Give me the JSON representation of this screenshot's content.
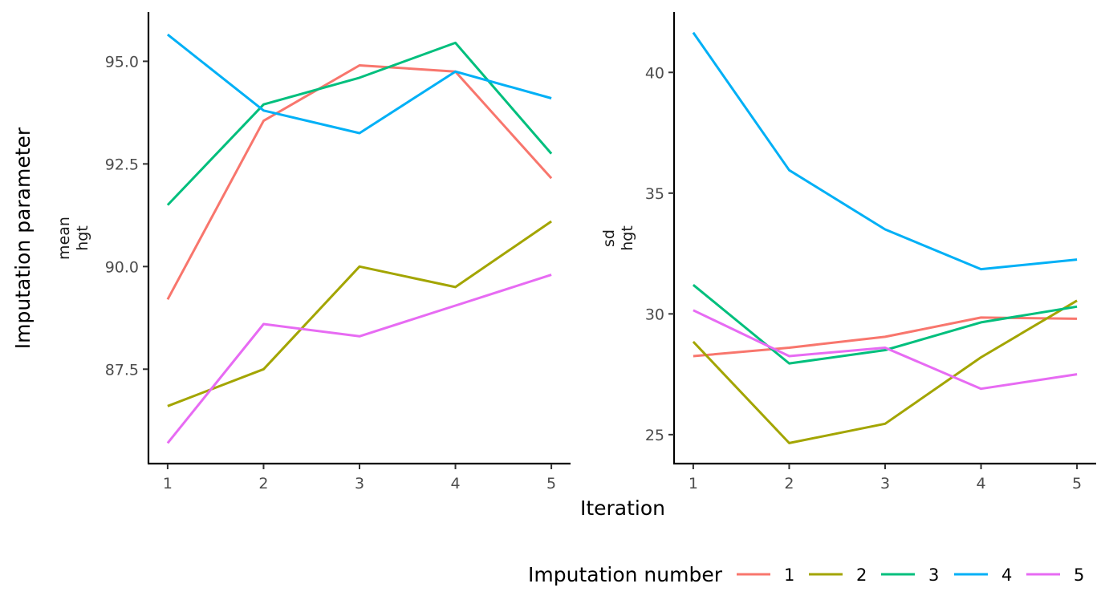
{
  "chart_data": {
    "type": "line",
    "ylabel": "Imputation parameter",
    "xlabel": "Iteration",
    "legend": {
      "title": "Imputation number",
      "position": "bottom-right",
      "entries": [
        {
          "label": "1",
          "color": "#F8766D"
        },
        {
          "label": "2",
          "color": "#A3A500"
        },
        {
          "label": "3",
          "color": "#00BF7D"
        },
        {
          "label": "4",
          "color": "#00B0F6"
        },
        {
          "label": "5",
          "color": "#E76BF3"
        }
      ]
    },
    "grid": false,
    "panels": [
      {
        "strip_label_lines": [
          "mean",
          "hgt"
        ],
        "x": [
          1,
          2,
          3,
          4,
          5
        ],
        "x_ticks": [
          "1",
          "2",
          "3",
          "4",
          "5"
        ],
        "xlim": [
          0.8,
          5.2
        ],
        "ylim": [
          85.2,
          96.2
        ],
        "y_ticks": [
          87.5,
          90.0,
          92.5,
          95.0
        ],
        "y_tick_labels": [
          "87.5",
          "90.0",
          "92.5",
          "95.0"
        ],
        "series": [
          {
            "name": "1",
            "values": [
              89.2,
              93.55,
              94.9,
              94.75,
              92.15
            ]
          },
          {
            "name": "2",
            "values": [
              86.6,
              87.5,
              90.0,
              89.5,
              91.1
            ]
          },
          {
            "name": "3",
            "values": [
              91.5,
              93.95,
              94.6,
              95.45,
              92.75
            ]
          },
          {
            "name": "4",
            "values": [
              95.65,
              93.8,
              93.25,
              94.75,
              94.1
            ]
          },
          {
            "name": "5",
            "values": [
              85.7,
              88.6,
              88.3,
              89.05,
              89.8
            ]
          }
        ]
      },
      {
        "strip_label_lines": [
          "sd",
          "hgt"
        ],
        "x": [
          1,
          2,
          3,
          4,
          5
        ],
        "x_ticks": [
          "1",
          "2",
          "3",
          "4",
          "5"
        ],
        "xlim": [
          0.8,
          5.2
        ],
        "ylim": [
          23.8,
          42.5
        ],
        "y_ticks": [
          25,
          30,
          35,
          40
        ],
        "y_tick_labels": [
          "25",
          "30",
          "35",
          "40"
        ],
        "series": [
          {
            "name": "1",
            "values": [
              28.25,
              28.6,
              29.05,
              29.85,
              29.8
            ]
          },
          {
            "name": "2",
            "values": [
              28.85,
              24.65,
              25.45,
              28.2,
              30.55
            ]
          },
          {
            "name": "3",
            "values": [
              31.2,
              27.95,
              28.5,
              29.65,
              30.3
            ]
          },
          {
            "name": "4",
            "values": [
              41.65,
              35.95,
              33.5,
              31.85,
              32.25
            ]
          },
          {
            "name": "5",
            "values": [
              30.15,
              28.25,
              28.6,
              26.9,
              27.5
            ]
          }
        ]
      }
    ]
  }
}
